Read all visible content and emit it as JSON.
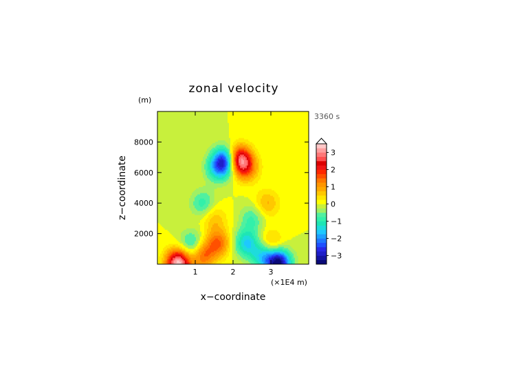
{
  "chart_data": {
    "type": "heatmap",
    "title": "zonal velocity",
    "xlabel": "x−coordinate",
    "ylabel": "z−coordinate",
    "y_unit": "(m)",
    "x_multiplier": "(×1E4 m)",
    "time_label": "3360 s",
    "xlim": [
      0,
      4
    ],
    "ylim": [
      0,
      10000
    ],
    "x_ticks": [
      1,
      2,
      3
    ],
    "x_tick_labels": [
      "1",
      "2",
      "3"
    ],
    "y_ticks": [
      2000,
      4000,
      6000,
      8000
    ],
    "y_tick_labels": [
      "2000",
      "4000",
      "6000",
      "8000"
    ],
    "colorbar": {
      "levels": [
        -3.5,
        -3.25,
        -3,
        -2.75,
        -2.5,
        -2.25,
        -2,
        -1.75,
        -1.5,
        -1.25,
        -1,
        -0.75,
        -0.5,
        -0.25,
        0,
        0.25,
        0.5,
        0.75,
        1,
        1.25,
        1.5,
        1.75,
        2,
        2.25,
        2.5,
        2.75,
        3,
        3.25,
        3.5
      ],
      "tick_values": [
        -3,
        -2,
        -1,
        0,
        1,
        2,
        3
      ],
      "tick_labels": [
        "−3",
        "−2",
        "−1",
        "0",
        "1",
        "2",
        "3"
      ],
      "colors": [
        "#0a0a78",
        "#1414a0",
        "#1e1ec8",
        "#2828e6",
        "#1e50ff",
        "#1e78ff",
        "#1ea0ff",
        "#1ec8ff",
        "#1edcdc",
        "#1ee6b4",
        "#32f0aa",
        "#50f0a0",
        "#a0f064",
        "#c8f03c",
        "#ffff00",
        "#ffe600",
        "#ffc800",
        "#ffaa00",
        "#ff9600",
        "#ff7800",
        "#ff5000",
        "#ff2800",
        "#f01414",
        "#dc0000",
        "#ff5050",
        "#ff7878",
        "#ffa0a0",
        "#ffc8c8"
      ],
      "extend": "max"
    },
    "features": [
      {
        "x": 1.8,
        "z": 6800,
        "value": -2.6
      },
      {
        "x": 2.15,
        "z": 6900,
        "value": 2.9
      },
      {
        "x": 2.35,
        "z": 6300,
        "value": 1.3
      },
      {
        "x": 1.6,
        "z": 6300,
        "value": -1.3
      },
      {
        "x": 1.2,
        "z": 4000,
        "value": -0.9
      },
      {
        "x": 2.9,
        "z": 4000,
        "value": 0.8
      },
      {
        "x": 1.5,
        "z": 3000,
        "value": 0.7
      },
      {
        "x": 2.5,
        "z": 3000,
        "value": -0.8
      },
      {
        "x": 0.55,
        "z": 100,
        "value": 3.4
      },
      {
        "x": 1.2,
        "z": 600,
        "value": 1.5
      },
      {
        "x": 3.2,
        "z": 100,
        "value": -3.4
      },
      {
        "x": 2.8,
        "z": 600,
        "value": -1.5
      },
      {
        "x": 0.9,
        "z": 1300,
        "value": -1.1
      },
      {
        "x": 3.0,
        "z": 1300,
        "value": 1.0
      },
      {
        "x": 1.6,
        "z": 1400,
        "value": 1.5
      },
      {
        "x": 2.35,
        "z": 1400,
        "value": -1.5
      }
    ]
  }
}
